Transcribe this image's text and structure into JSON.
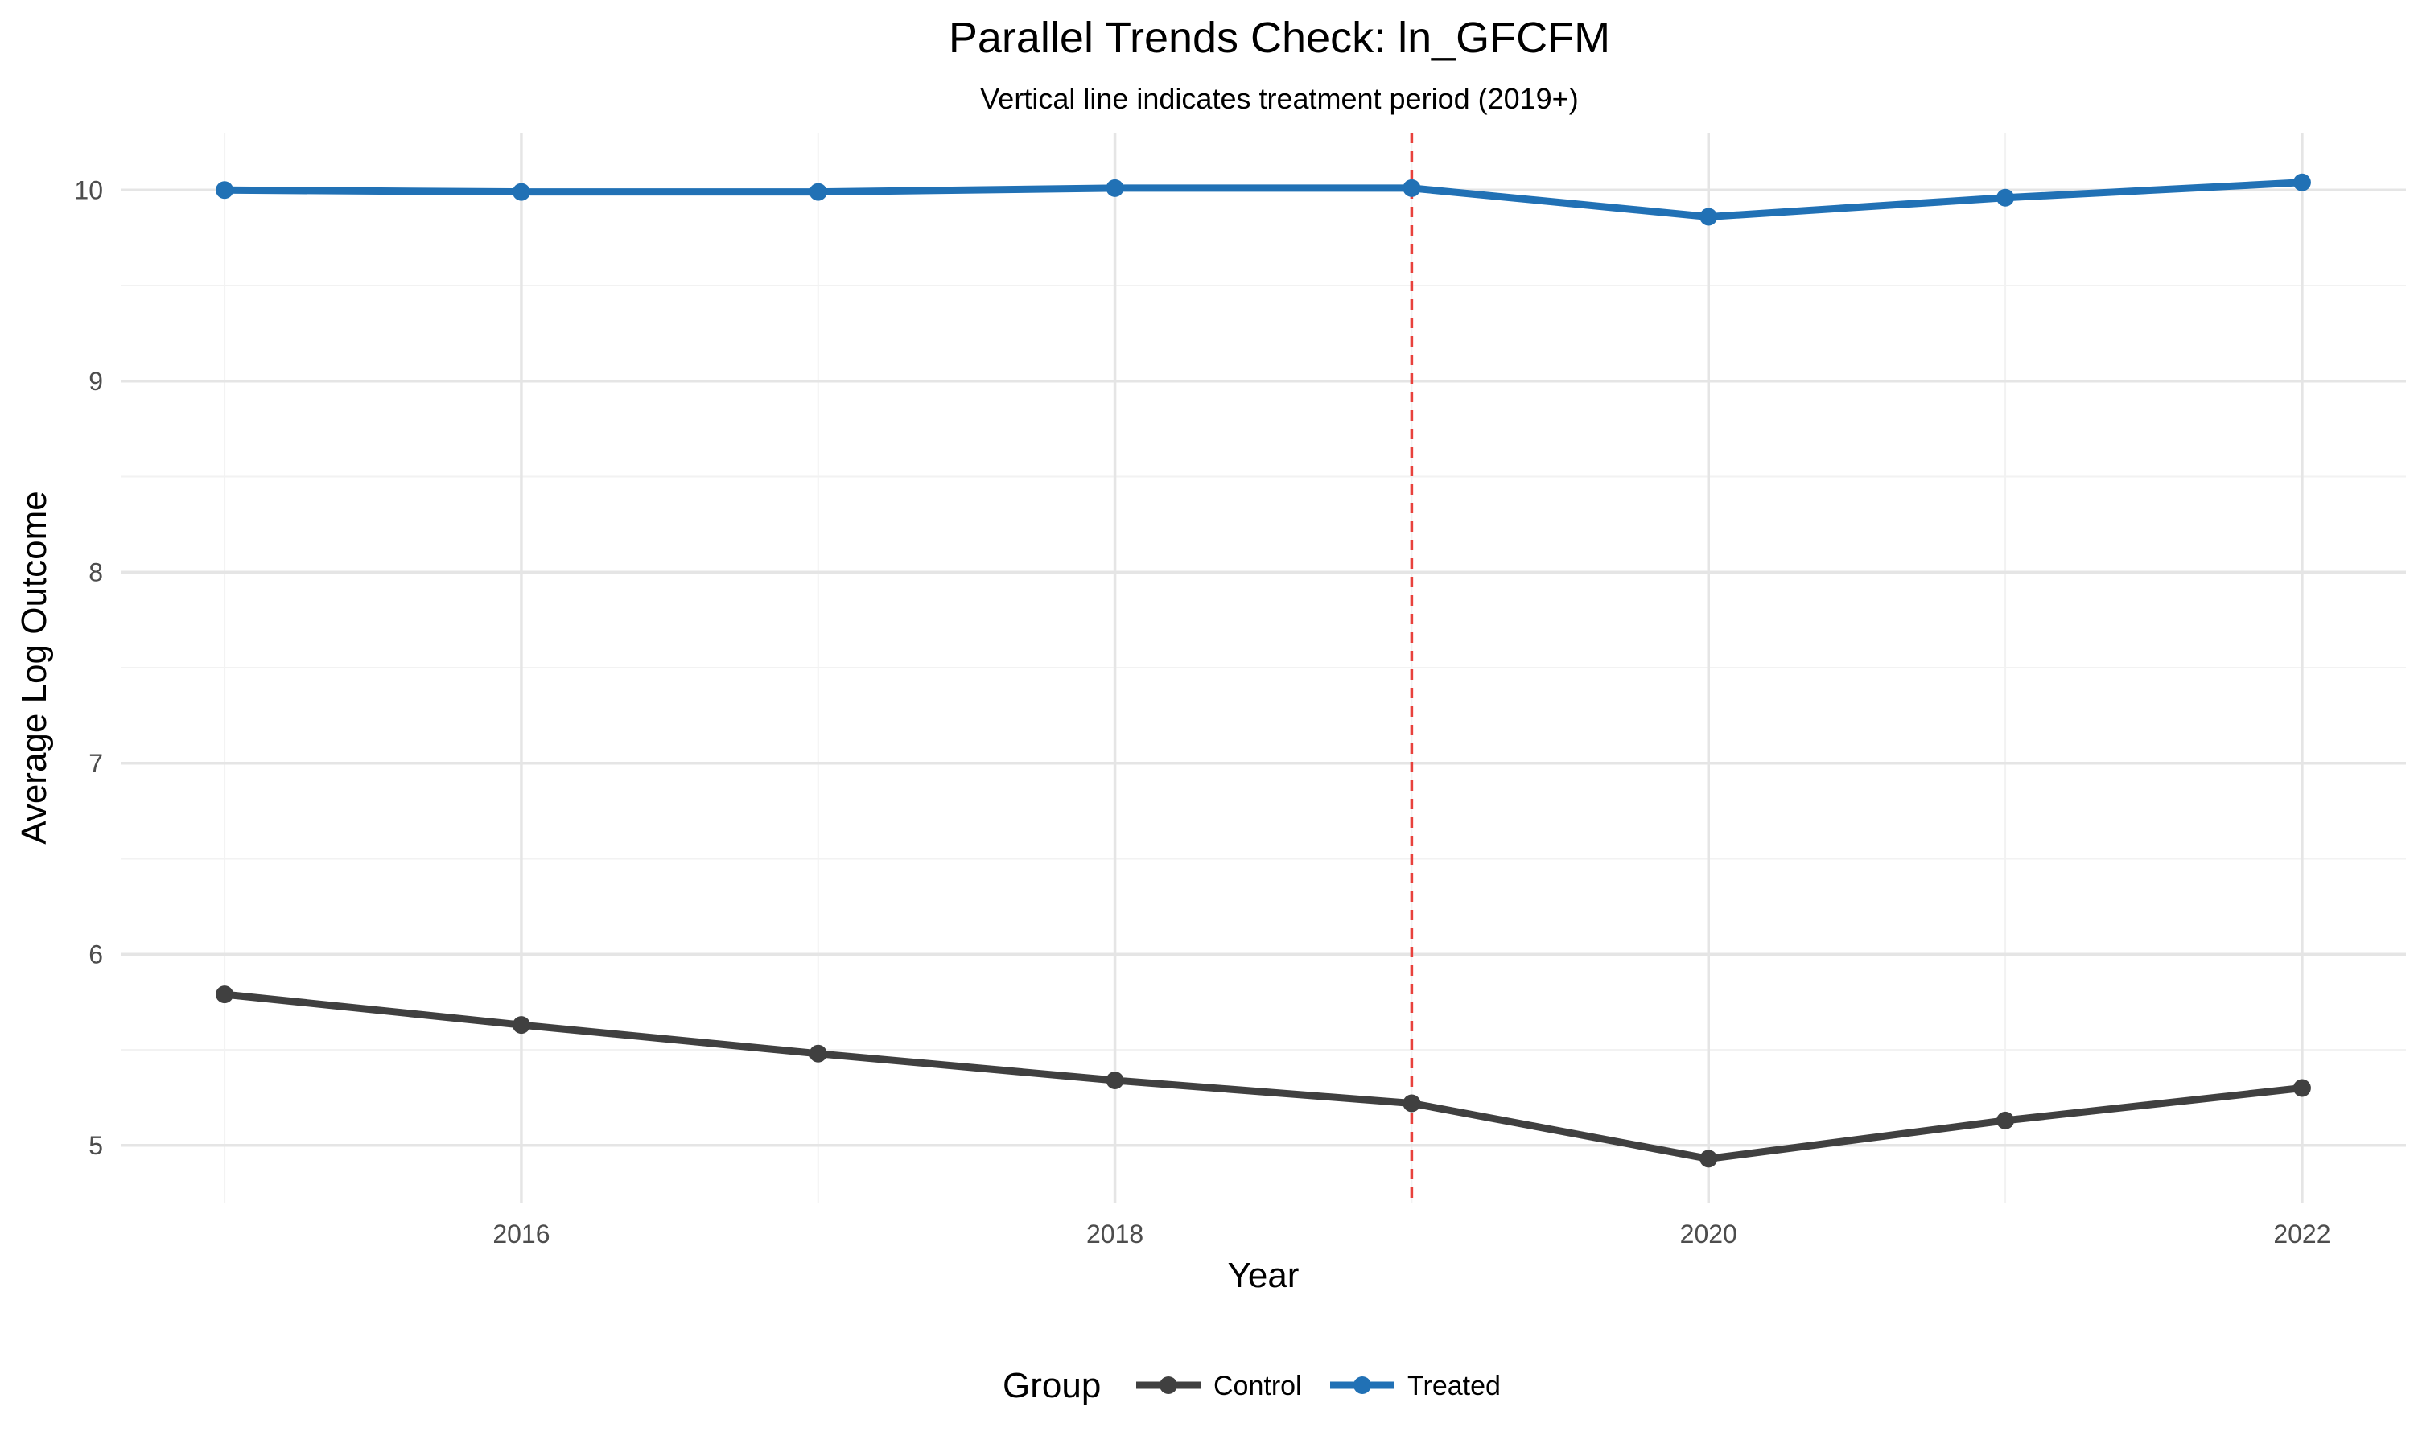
{
  "chart_data": {
    "type": "line",
    "title": "Parallel Trends Check: ln_GFCFM",
    "subtitle": "Vertical line indicates treatment period (2019+)",
    "xlabel": "Year",
    "ylabel": "Average Log Outcome",
    "x": [
      2015,
      2016,
      2017,
      2018,
      2019,
      2020,
      2021,
      2022
    ],
    "xticks": [
      2016,
      2018,
      2020,
      2022
    ],
    "xtick_labels": [
      "2016",
      "2018",
      "2020",
      "2022"
    ],
    "yticks": [
      5,
      6,
      7,
      8,
      9,
      10
    ],
    "ytick_labels": [
      "5",
      "6",
      "7",
      "8",
      "9",
      "10"
    ],
    "xlim": [
      2014.65,
      2022.35
    ],
    "ylim": [
      4.7,
      10.3
    ],
    "grid": true,
    "treatment_line": {
      "x": 2019,
      "color": "#e8413c",
      "style": "dashed"
    },
    "legend": {
      "title": "Group",
      "position": "bottom"
    },
    "series": [
      {
        "name": "Control",
        "color": "#404040",
        "values": [
          5.79,
          5.63,
          5.48,
          5.34,
          5.22,
          4.93,
          5.13,
          5.3
        ]
      },
      {
        "name": "Treated",
        "color": "#2171b5",
        "values": [
          10.0,
          9.99,
          9.99,
          10.01,
          10.01,
          9.86,
          9.96,
          10.04
        ]
      }
    ]
  }
}
